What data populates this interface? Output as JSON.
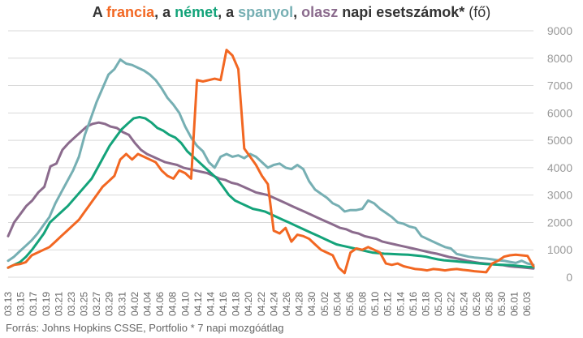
{
  "title": {
    "parts": [
      {
        "text": "A ",
        "key": "plain"
      },
      {
        "text": "francia",
        "key": "fr"
      },
      {
        "text": ", a ",
        "key": "plain"
      },
      {
        "text": "német",
        "key": "de"
      },
      {
        "text": ", a ",
        "key": "plain"
      },
      {
        "text": "spanyol",
        "key": "es"
      },
      {
        "text": ", ",
        "key": "plain"
      },
      {
        "text": "olasz",
        "key": "it"
      },
      {
        "text": " napi esetszámok*",
        "key": "plain"
      },
      {
        "text": " (fő)",
        "key": "light"
      }
    ]
  },
  "source": "Forrás: Johns Hopkins CSSE, Portfolio  * 7 napi mozgóátlag",
  "colors": {
    "plain": "#333333",
    "fr": "#f26722",
    "de": "#14a37a",
    "es": "#76afb3",
    "it": "#8b6b8d",
    "grid": "#d9d9d9",
    "tick": "#666666",
    "ytick": "#999999"
  },
  "chart_data": {
    "type": "line",
    "x_start": "03.13",
    "x_tick_labels": [
      "03.13",
      "03.15",
      "03.17",
      "03.19",
      "03.21",
      "03.23",
      "03.25",
      "03.27",
      "03.29",
      "03.31",
      "04.02",
      "04.04",
      "04.06",
      "04.08",
      "04.10",
      "04.12",
      "04.14",
      "04.16",
      "04.18",
      "04.20",
      "04.22",
      "04.24",
      "04.26",
      "04.28",
      "04.30",
      "05.02",
      "05.04",
      "05.06",
      "05.08",
      "05.10",
      "05.12",
      "05.14",
      "05.16",
      "05.18",
      "05.20",
      "05.22",
      "05.24",
      "05.26",
      "05.28",
      "05.30",
      "06.01",
      "06.03"
    ],
    "ylim": [
      0,
      9000
    ],
    "y_ticks": [
      0,
      1000,
      2000,
      3000,
      4000,
      5000,
      6000,
      7000,
      8000,
      9000
    ],
    "grid": "horizontal",
    "series": [
      {
        "name": "olasz",
        "key": "it",
        "values": [
          1500,
          2000,
          2300,
          2600,
          2800,
          3100,
          3300,
          4050,
          4150,
          4650,
          4900,
          5100,
          5300,
          5500,
          5600,
          5650,
          5600,
          5500,
          5450,
          5300,
          5200,
          4900,
          4650,
          4500,
          4400,
          4300,
          4200,
          4150,
          4100,
          4000,
          3950,
          3900,
          3850,
          3800,
          3700,
          3600,
          3550,
          3450,
          3400,
          3300,
          3200,
          3100,
          3050,
          3000,
          2900,
          2800,
          2700,
          2600,
          2500,
          2400,
          2300,
          2200,
          2100,
          2000,
          1900,
          1800,
          1750,
          1650,
          1600,
          1500,
          1450,
          1400,
          1300,
          1250,
          1200,
          1150,
          1100,
          1050,
          1000,
          950,
          900,
          860,
          800,
          740,
          700,
          650,
          600,
          560,
          520,
          500,
          480,
          460,
          440,
          400,
          380,
          360,
          340,
          320
        ]
      },
      {
        "name": "spanyol",
        "key": "es",
        "values": [
          600,
          750,
          950,
          1150,
          1350,
          1600,
          1900,
          2200,
          2700,
          3100,
          3500,
          3900,
          4400,
          5200,
          5800,
          6400,
          6900,
          7400,
          7600,
          7950,
          7800,
          7750,
          7650,
          7550,
          7400,
          7200,
          6900,
          6550,
          6300,
          6000,
          5500,
          5100,
          4800,
          4600,
          4200,
          4000,
          4400,
          4500,
          4400,
          4450,
          4350,
          4500,
          4400,
          4200,
          4000,
          4100,
          4150,
          4000,
          3950,
          4100,
          3950,
          3500,
          3200,
          3050,
          2900,
          2700,
          2600,
          2400,
          2450,
          2450,
          2500,
          2800,
          2700,
          2500,
          2350,
          2200,
          2000,
          1950,
          1850,
          1800,
          1500,
          1400,
          1300,
          1200,
          1100,
          1050,
          850,
          800,
          750,
          720,
          700,
          680,
          650,
          620,
          600,
          560,
          520,
          600,
          500,
          450
        ]
      },
      {
        "name": "német",
        "key": "de",
        "values": [
          350,
          450,
          550,
          750,
          1000,
          1300,
          1600,
          2000,
          2200,
          2400,
          2600,
          2850,
          3100,
          3350,
          3600,
          4000,
          4400,
          4800,
          5100,
          5400,
          5600,
          5800,
          5850,
          5800,
          5650,
          5450,
          5350,
          5200,
          5100,
          4900,
          4600,
          4400,
          4200,
          4000,
          3800,
          3600,
          3300,
          3000,
          2800,
          2700,
          2600,
          2500,
          2450,
          2400,
          2300,
          2200,
          2100,
          2000,
          1900,
          1800,
          1700,
          1600,
          1500,
          1400,
          1300,
          1200,
          1150,
          1100,
          1050,
          1000,
          950,
          900,
          880,
          860,
          850,
          840,
          830,
          820,
          800,
          780,
          750,
          700,
          650,
          620,
          600,
          580,
          560,
          540,
          520,
          500,
          480,
          470,
          460,
          450,
          440,
          420,
          400,
          380,
          360
        ]
      },
      {
        "name": "francia",
        "key": "fr",
        "values": [
          350,
          450,
          480,
          550,
          800,
          900,
          1000,
          1100,
          1300,
          1500,
          1700,
          1900,
          2100,
          2400,
          2700,
          3000,
          3300,
          3500,
          3700,
          4300,
          4500,
          4300,
          4500,
          4400,
          4300,
          4200,
          3900,
          3700,
          3600,
          3900,
          3800,
          3600,
          7200,
          7150,
          7200,
          7250,
          7200,
          8300,
          8100,
          7600,
          4700,
          4400,
          4100,
          3700,
          3400,
          1700,
          1600,
          1800,
          1300,
          1550,
          1500,
          1400,
          1200,
          1000,
          900,
          800,
          350,
          150,
          900,
          1050,
          1000,
          1100,
          1000,
          900,
          500,
          450,
          500,
          400,
          350,
          300,
          280,
          250,
          300,
          280,
          250,
          280,
          300,
          270,
          250,
          220,
          200,
          180,
          500,
          600,
          750,
          800,
          820,
          800,
          780,
          400
        ]
      }
    ]
  }
}
